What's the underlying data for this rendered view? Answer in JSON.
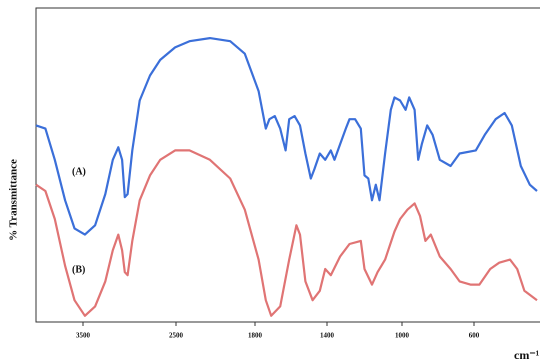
{
  "chart_data": {
    "type": "line",
    "y_label": "% Transmittance",
    "x_label": "cm⁻¹",
    "xlim": [
      4000,
      250
    ],
    "xticks": [
      3500,
      2500,
      1800,
      1400,
      1000,
      600
    ],
    "ylim": [
      0,
      100
    ],
    "annotations": [
      "(A)",
      "(B)"
    ],
    "series": [
      {
        "name": "(A)",
        "color": "#3b6fd9",
        "x": [
          4000,
          3900,
          3800,
          3690,
          3590,
          3480,
          3370,
          3260,
          3180,
          3120,
          3080,
          3050,
          3020,
          2970,
          2890,
          2780,
          2670,
          2510,
          2380,
          2200,
          2020,
          1890,
          1780,
          1740,
          1720,
          1690,
          1660,
          1630,
          1610,
          1580,
          1550,
          1520,
          1490,
          1470,
          1440,
          1410,
          1380,
          1360,
          1330,
          1300,
          1280,
          1250,
          1220,
          1200,
          1180,
          1160,
          1140,
          1120,
          1090,
          1060,
          1040,
          1010,
          980,
          960,
          930,
          910,
          890,
          860,
          830,
          790,
          730,
          680,
          590,
          540,
          480,
          430,
          390,
          340,
          290,
          250
        ],
        "values": [
          63,
          62,
          52,
          39,
          30,
          28,
          31,
          41,
          52,
          56,
          52,
          40,
          41,
          55,
          71,
          79,
          84,
          88,
          90,
          91,
          90,
          86,
          74,
          62,
          65,
          66,
          62,
          55,
          65,
          66,
          63,
          54,
          46,
          49,
          54,
          52,
          55,
          52,
          57,
          62,
          65,
          65,
          62,
          47,
          46,
          39,
          44,
          39,
          54,
          68,
          72,
          71,
          68,
          72,
          68,
          52,
          57,
          63,
          60,
          52,
          50,
          54,
          55,
          60,
          65,
          67,
          63,
          50,
          44,
          42
        ]
      },
      {
        "name": "(B)",
        "color": "#e07474",
        "x": [
          4000,
          3900,
          3800,
          3690,
          3590,
          3480,
          3370,
          3260,
          3180,
          3120,
          3080,
          3050,
          3020,
          2970,
          2890,
          2780,
          2670,
          2510,
          2380,
          2200,
          2020,
          1890,
          1780,
          1740,
          1710,
          1660,
          1610,
          1570,
          1550,
          1520,
          1480,
          1440,
          1410,
          1380,
          1330,
          1280,
          1220,
          1200,
          1160,
          1130,
          1090,
          1040,
          1010,
          970,
          930,
          900,
          870,
          840,
          790,
          730,
          680,
          620,
          570,
          510,
          460,
          400,
          360,
          320,
          250
        ],
        "values": [
          44,
          42,
          33,
          18,
          7,
          2,
          5,
          13,
          23,
          28,
          23,
          16,
          15,
          26,
          39,
          47,
          52,
          55,
          55,
          52,
          46,
          36,
          20,
          7,
          2,
          5,
          20,
          31,
          28,
          13,
          7,
          10,
          17,
          15,
          21,
          25,
          26,
          17,
          12,
          16,
          20,
          29,
          33,
          36,
          38,
          34,
          26,
          28,
          21,
          17,
          13,
          12,
          12,
          17,
          19,
          20,
          17,
          10,
          7
        ]
      }
    ]
  }
}
